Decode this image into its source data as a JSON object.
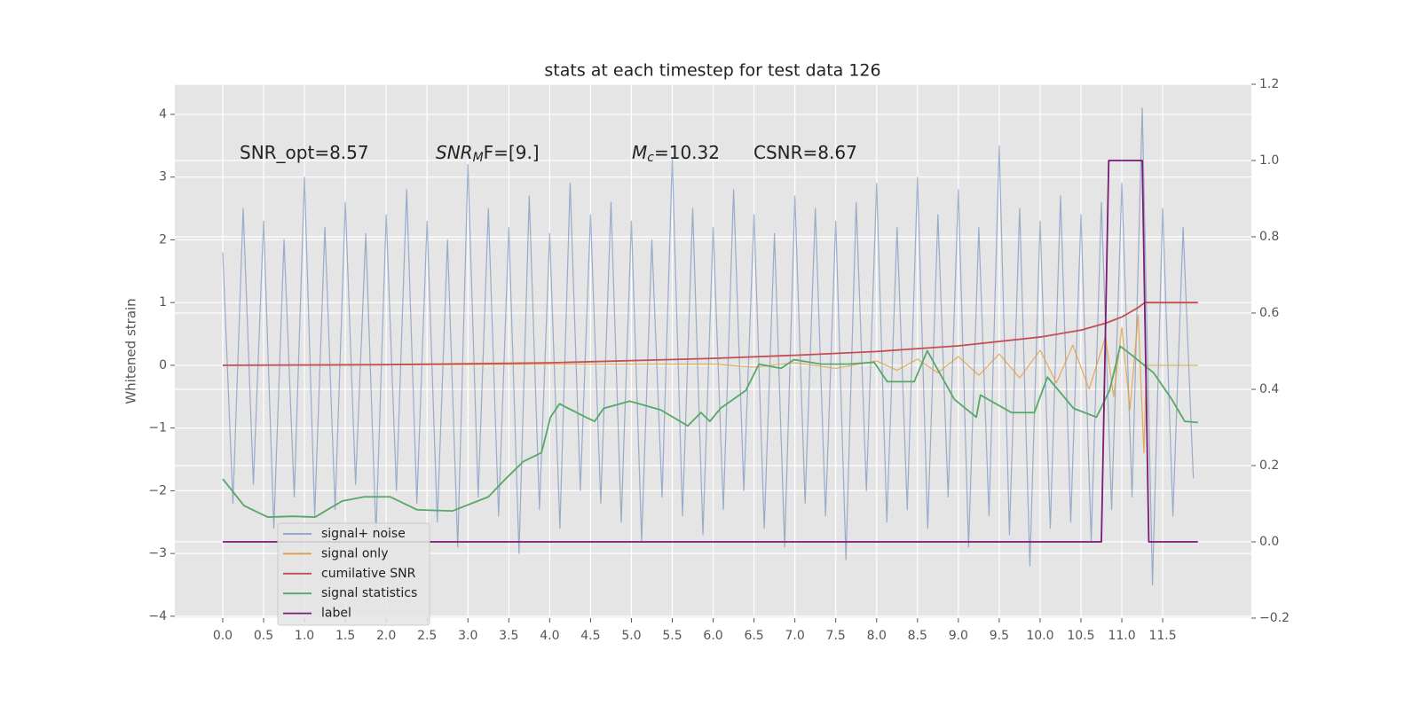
{
  "chart_data": {
    "type": "line",
    "title": "stats at each timestep for test data 126",
    "ylabel": "Whitened strain",
    "annotations": [
      {
        "parts": [
          "SNR_opt=8.57"
        ]
      },
      {
        "parts": [
          "SNR",
          "M",
          "F=[9.]"
        ]
      },
      {
        "parts": [
          "M",
          "c",
          "=10.32"
        ]
      },
      {
        "parts": [
          "CSNR=8.67"
        ]
      }
    ],
    "xlim": [
      -0.586,
      12.585
    ],
    "ylim": [
      -4.03,
      4.48
    ],
    "y2lim": [
      -0.2,
      1.2
    ],
    "xticks": [
      {
        "value": 0,
        "label": "0.0"
      },
      0.5,
      {
        "value": 1,
        "label": "1.0"
      },
      1.5,
      {
        "value": 2,
        "label": "2.0"
      },
      2.5,
      {
        "value": 3,
        "label": "3.0"
      },
      3.5,
      {
        "value": 4,
        "label": "4.0"
      },
      4.5,
      {
        "value": 5,
        "label": "5.0"
      },
      5.5,
      {
        "value": 6,
        "label": "6.0"
      },
      6.5,
      {
        "value": 7,
        "label": "7.0"
      },
      7.5,
      {
        "value": 8,
        "label": "8.0"
      },
      8.5,
      {
        "value": 9,
        "label": "9.0"
      },
      9.5,
      {
        "value": 10,
        "label": "10.0"
      },
      10.5,
      {
        "value": 11,
        "label": "11.0"
      },
      11.5
    ],
    "yticks": [
      {
        "value": -4,
        "label": "−4"
      },
      {
        "value": -3,
        "label": "−3"
      },
      {
        "value": -2,
        "label": "−2"
      },
      {
        "value": -1,
        "label": "−1"
      },
      0,
      1,
      2,
      3,
      4
    ],
    "y2ticks": [
      {
        "value": -0.2,
        "label": "−0.2"
      },
      {
        "value": 0,
        "label": "0.0"
      },
      0.2,
      0.4,
      0.6,
      0.8,
      {
        "value": 1,
        "label": "1.0"
      },
      1.2
    ],
    "grid": true,
    "series": [
      {
        "name": "signal+ noise",
        "color": "#4c72b0",
        "x": [
          0,
          0.125,
          0.25,
          0.375,
          0.5,
          0.625,
          0.75,
          0.875,
          1,
          1.125,
          1.25,
          1.375,
          1.5,
          1.625,
          1.75,
          1.875,
          2,
          2.125,
          2.25,
          2.375,
          2.5,
          2.625,
          2.75,
          2.875,
          3,
          3.125,
          3.25,
          3.375,
          3.5,
          3.625,
          3.75,
          3.875,
          4,
          4.125,
          4.25,
          4.375,
          4.5,
          4.625,
          4.75,
          4.875,
          5,
          5.125,
          5.25,
          5.375,
          5.5,
          5.625,
          5.75,
          5.875,
          6,
          6.125,
          6.25,
          6.375,
          6.5,
          6.625,
          6.75,
          6.875,
          7,
          7.125,
          7.25,
          7.375,
          7.5,
          7.625,
          7.75,
          7.875,
          8,
          8.125,
          8.25,
          8.375,
          8.5,
          8.625,
          8.75,
          8.875,
          9,
          9.125,
          9.25,
          9.375,
          9.5,
          9.625,
          9.75,
          9.875,
          10,
          10.125,
          10.25,
          10.375,
          10.5,
          10.625,
          10.75,
          10.875,
          11,
          11.125,
          11.25,
          11.375,
          11.5,
          11.625,
          11.75,
          11.875
        ],
        "values": [
          1.8,
          -2.2,
          2.5,
          -1.9,
          2.3,
          -2.6,
          2.0,
          -2.1,
          3.0,
          -2.4,
          2.2,
          -2.3,
          2.6,
          -1.9,
          2.1,
          -2.7,
          2.4,
          -2.0,
          2.8,
          -2.2,
          2.3,
          -2.5,
          2.0,
          -2.9,
          3.2,
          -2.1,
          2.5,
          -2.4,
          2.2,
          -3.0,
          2.7,
          -2.3,
          2.1,
          -2.6,
          2.9,
          -2.0,
          2.4,
          -2.2,
          2.6,
          -2.5,
          2.3,
          -2.8,
          2.0,
          -2.1,
          3.3,
          -2.4,
          2.5,
          -2.7,
          2.2,
          -2.3,
          2.8,
          -2.0,
          2.4,
          -2.6,
          2.1,
          -2.9,
          2.7,
          -2.2,
          2.5,
          -2.4,
          2.3,
          -3.1,
          2.6,
          -2.0,
          2.9,
          -2.5,
          2.2,
          -2.3,
          3.0,
          -2.6,
          2.4,
          -2.1,
          2.8,
          -2.9,
          2.2,
          -2.4,
          3.5,
          -2.7,
          2.5,
          -3.2,
          2.3,
          -2.6,
          2.7,
          -2.5,
          2.4,
          -2.8,
          2.6,
          -2.3,
          2.9,
          -2.1,
          4.1,
          -3.5,
          2.5,
          -2.4,
          2.2,
          -1.8
        ]
      },
      {
        "name": "signal only",
        "color": "#dd9d3a",
        "x": [
          0,
          6,
          6.5,
          7,
          7.5,
          8,
          8.25,
          8.5,
          8.75,
          9,
          9.25,
          9.5,
          9.75,
          10,
          10.2,
          10.4,
          10.6,
          10.8,
          10.9,
          11,
          11.1,
          11.2,
          11.27,
          11.3,
          11.93
        ],
        "values": [
          0,
          0.02,
          -0.03,
          0.04,
          -0.05,
          0.07,
          -0.08,
          0.1,
          -0.12,
          0.14,
          -0.16,
          0.18,
          -0.2,
          0.24,
          -0.28,
          0.32,
          -0.38,
          0.45,
          -0.5,
          0.6,
          -0.7,
          0.8,
          -1.4,
          0,
          0
        ]
      },
      {
        "name": "cumilative SNR",
        "color": "#c44e52",
        "x": [
          0,
          2,
          4,
          6,
          7,
          8,
          9,
          10,
          10.5,
          10.8,
          11,
          11.2,
          11.28,
          11.93
        ],
        "values": [
          0,
          0.01,
          0.04,
          0.11,
          0.16,
          0.22,
          0.31,
          0.45,
          0.56,
          0.67,
          0.77,
          0.92,
          1.0,
          1.0
        ]
      },
      {
        "name": "signal statistics",
        "color": "#55a868",
        "axis": "y2",
        "x": [
          0,
          0.26,
          0.55,
          0.86,
          1.13,
          1.46,
          1.73,
          2.05,
          2.38,
          2.81,
          3.25,
          3.46,
          3.68,
          3.9,
          4.01,
          4.12,
          4.44,
          4.55,
          4.66,
          4.98,
          5.36,
          5.69,
          5.85,
          5.96,
          6.09,
          6.4,
          6.56,
          6.83,
          6.99,
          7.32,
          7.64,
          7.97,
          8.13,
          8.46,
          8.62,
          8.95,
          9.22,
          9.27,
          9.65,
          9.93,
          10.09,
          10.41,
          10.69,
          10.85,
          10.98,
          11.12,
          11.39,
          11.61,
          11.77,
          11.93
        ],
        "values": [
          0.165,
          0.095,
          0.065,
          0.067,
          0.065,
          0.107,
          0.118,
          0.118,
          0.084,
          0.081,
          0.118,
          0.165,
          0.211,
          0.234,
          0.327,
          0.362,
          0.327,
          0.316,
          0.35,
          0.369,
          0.346,
          0.304,
          0.339,
          0.316,
          0.35,
          0.397,
          0.466,
          0.455,
          0.478,
          0.466,
          0.466,
          0.471,
          0.42,
          0.42,
          0.501,
          0.374,
          0.327,
          0.385,
          0.339,
          0.339,
          0.432,
          0.35,
          0.327,
          0.397,
          0.513,
          0.49,
          0.443,
          0.374,
          0.316,
          0.313
        ]
      },
      {
        "name": "label",
        "color": "#7b1a77",
        "axis": "y2",
        "x": [
          0,
          10.75,
          10.84,
          11.25,
          11.33,
          11.93
        ],
        "values": [
          0,
          0,
          1,
          1,
          0,
          0
        ]
      }
    ]
  }
}
